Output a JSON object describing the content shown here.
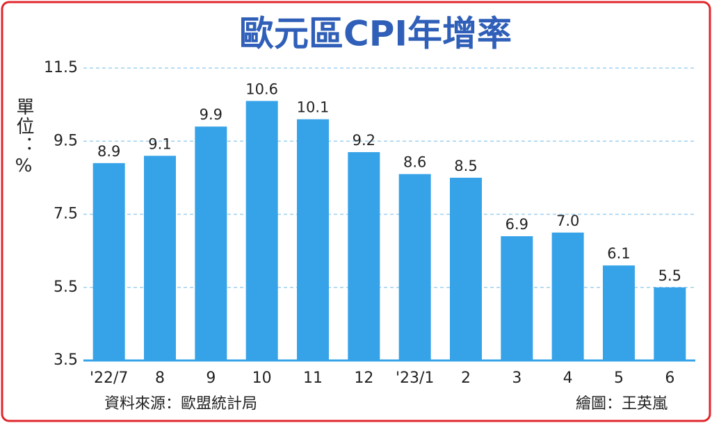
{
  "chart_data": {
    "type": "bar",
    "title": "歐元區CPI年增率",
    "y_label": "單位：%",
    "categories": [
      "'22/7",
      "8",
      "9",
      "10",
      "11",
      "12",
      "'23/1",
      "2",
      "3",
      "4",
      "5",
      "6"
    ],
    "values": [
      8.9,
      9.1,
      9.9,
      10.6,
      10.1,
      9.2,
      8.6,
      8.5,
      6.9,
      7.0,
      6.1,
      5.5
    ],
    "value_labels": [
      "8.9",
      "9.1",
      "9.9",
      "10.6",
      "10.1",
      "9.2",
      "8.6",
      "8.5",
      "6.9",
      "7.0",
      "6.1",
      "5.5"
    ],
    "color": "#36a3e8",
    "ylim": [
      3.5,
      11.5
    ],
    "yticks": [
      3.5,
      5.5,
      7.5,
      9.5,
      11.5
    ],
    "grid": true,
    "source": "資料來源：歐盟統計局",
    "credit": "繪圖：王英嵐"
  }
}
